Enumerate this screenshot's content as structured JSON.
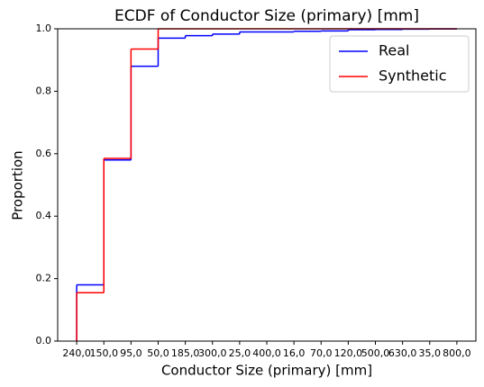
{
  "chart_data": {
    "type": "ecdf",
    "title": "ECDF of Conductor Size (primary) [mm]",
    "xlabel": "Conductor Size (primary) [mm]",
    "ylabel": "Proportion",
    "categories": [
      "240,0",
      "150,0",
      "95,0",
      "50,0",
      "185,0",
      "300,0",
      "25,0",
      "400,0",
      "16,0",
      "70,0",
      "120,0",
      "500,0",
      "630,0",
      "35,0",
      "800,0"
    ],
    "series": [
      {
        "name": "Real",
        "color": "#0000ff",
        "values": [
          0.18,
          0.58,
          0.88,
          0.97,
          0.978,
          0.983,
          0.99,
          0.99,
          0.992,
          0.993,
          0.997,
          0.998,
          0.999,
          0.9995,
          1.0
        ]
      },
      {
        "name": "Synthetic",
        "color": "#ff0000",
        "values": [
          0.155,
          0.585,
          0.935,
          1.0,
          1.0,
          1.0,
          1.0,
          1.0,
          1.0,
          1.0,
          1.0,
          1.0,
          1.0,
          1.0,
          1.0
        ]
      }
    ],
    "ylim": [
      0,
      1
    ],
    "yticks": [
      {
        "value": 0,
        "label": "0.0"
      },
      {
        "value": 0.2,
        "label": "0.2"
      },
      {
        "value": 0.4,
        "label": "0.4"
      },
      {
        "value": 0.6,
        "label": "0.6"
      },
      {
        "value": 0.8,
        "label": "0.8"
      },
      {
        "value": 1,
        "label": "1.0"
      }
    ],
    "legend": "upper right"
  }
}
